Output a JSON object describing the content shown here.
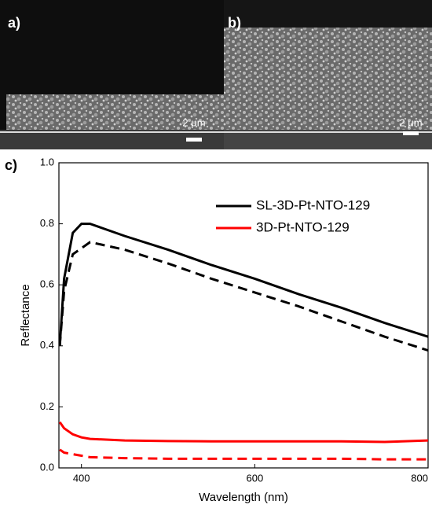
{
  "figure": {
    "panels": [
      {
        "label": "a)",
        "scale": "2 μm"
      },
      {
        "label": "b)",
        "scale": "2 μm"
      }
    ]
  },
  "chart_data": {
    "type": "line",
    "panel_label": "c)",
    "x_label": "Wavelength (nm)",
    "y_label": "Reflectance",
    "x": [
      375,
      380,
      390,
      400,
      410,
      450,
      500,
      550,
      600,
      650,
      700,
      750,
      800
    ],
    "series": [
      {
        "name": "SL-3D-Pt-NTO-129",
        "color": "#000000",
        "dash": false,
        "values": [
          0.4,
          0.62,
          0.77,
          0.8,
          0.8,
          0.76,
          0.715,
          0.665,
          0.62,
          0.57,
          0.525,
          0.475,
          0.43
        ]
      },
      {
        "color": "#000000",
        "dash": true,
        "values": [
          0.4,
          0.58,
          0.7,
          0.72,
          0.74,
          0.715,
          0.67,
          0.62,
          0.575,
          0.53,
          0.48,
          0.43,
          0.385
        ]
      },
      {
        "name": "3D-Pt-NTO-129",
        "color": "#ff0000",
        "dash": false,
        "values": [
          0.15,
          0.13,
          0.11,
          0.1,
          0.095,
          0.09,
          0.088,
          0.087,
          0.087,
          0.087,
          0.087,
          0.085,
          0.09
        ]
      },
      {
        "color": "#ff0000",
        "dash": true,
        "values": [
          0.06,
          0.05,
          0.045,
          0.04,
          0.035,
          0.032,
          0.03,
          0.03,
          0.03,
          0.03,
          0.03,
          0.028,
          0.028
        ]
      }
    ],
    "xlim": [
      374,
      800
    ],
    "xticks": [
      400,
      600,
      800
    ],
    "ylim": [
      0,
      1
    ],
    "yticks": [
      {
        "value": 0,
        "label": "0.0"
      },
      0.2,
      0.4,
      0.6,
      0.8,
      {
        "value": 1,
        "label": "1.0"
      }
    ]
  }
}
